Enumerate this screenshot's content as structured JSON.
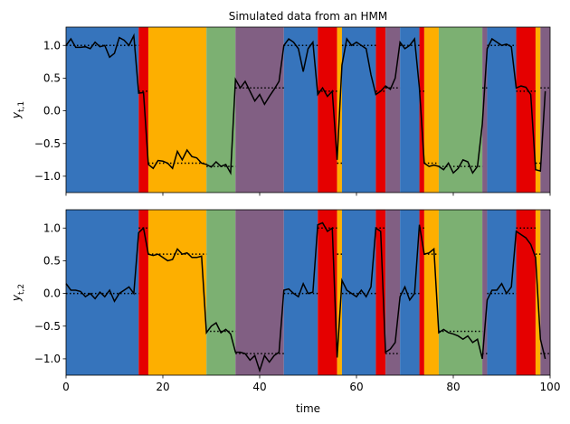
{
  "chart_data": [
    {
      "type": "line",
      "title": "Simulated data from an HMM",
      "ylabel": "y",
      "ylabel_sub": "t,1",
      "xlim": [
        0,
        100
      ],
      "ylim": [
        -1.25,
        1.28
      ],
      "xticks": [
        0,
        20,
        40,
        60,
        80,
        100
      ],
      "xtick_labels": false,
      "yticks": [
        {
          "value": -1.0,
          "label": "−1.0"
        },
        {
          "value": -0.5,
          "label": "−0.5"
        },
        {
          "value": 0.0,
          "label": "0.0"
        },
        0.5,
        {
          "value": 1.0,
          "label": "1.0"
        }
      ],
      "segments": [
        {
          "start": 0,
          "end": 15,
          "color": "#3674bc",
          "mean": 1.0
        },
        {
          "start": 15,
          "end": 17,
          "color": "#e50000",
          "mean": 0.3
        },
        {
          "start": 17,
          "end": 29,
          "color": "#fdaf00",
          "mean": -0.8
        },
        {
          "start": 29,
          "end": 35,
          "color": "#7cb072",
          "mean": -0.85
        },
        {
          "start": 35,
          "end": 45,
          "color": "#815f83",
          "mean": 0.35
        },
        {
          "start": 45,
          "end": 52,
          "color": "#3674bc",
          "mean": 1.0
        },
        {
          "start": 52,
          "end": 56,
          "color": "#e50000",
          "mean": 0.3
        },
        {
          "start": 56,
          "end": 57,
          "color": "#fdaf00",
          "mean": -0.8
        },
        {
          "start": 57,
          "end": 64,
          "color": "#3674bc",
          "mean": 1.0
        },
        {
          "start": 64,
          "end": 66,
          "color": "#e50000",
          "mean": 0.3
        },
        {
          "start": 66,
          "end": 69,
          "color": "#815f83",
          "mean": 0.35
        },
        {
          "start": 69,
          "end": 73,
          "color": "#3674bc",
          "mean": 1.0
        },
        {
          "start": 73,
          "end": 74,
          "color": "#e50000",
          "mean": 0.3
        },
        {
          "start": 74,
          "end": 77,
          "color": "#fdaf00",
          "mean": -0.8
        },
        {
          "start": 77,
          "end": 86,
          "color": "#7cb072",
          "mean": -0.85
        },
        {
          "start": 86,
          "end": 87,
          "color": "#815f83",
          "mean": 0.35
        },
        {
          "start": 87,
          "end": 93,
          "color": "#3674bc",
          "mean": 1.0
        },
        {
          "start": 93,
          "end": 97,
          "color": "#e50000",
          "mean": 0.3
        },
        {
          "start": 97,
          "end": 98,
          "color": "#fdaf00",
          "mean": -0.8
        },
        {
          "start": 98,
          "end": 100,
          "color": "#815f83",
          "mean": 0.35
        }
      ],
      "x": [
        0,
        1,
        2,
        3,
        4,
        5,
        6,
        7,
        8,
        9,
        10,
        11,
        12,
        13,
        14,
        15,
        16,
        17,
        18,
        19,
        20,
        21,
        22,
        23,
        24,
        25,
        26,
        27,
        28,
        29,
        30,
        31,
        32,
        33,
        34,
        35,
        36,
        37,
        38,
        39,
        40,
        41,
        42,
        43,
        44,
        45,
        46,
        47,
        48,
        49,
        50,
        51,
        52,
        53,
        54,
        55,
        56,
        57,
        58,
        59,
        60,
        61,
        62,
        63,
        64,
        65,
        66,
        67,
        68,
        69,
        70,
        71,
        72,
        73,
        74,
        75,
        76,
        77,
        78,
        79,
        80,
        81,
        82,
        83,
        84,
        85,
        86,
        87,
        88,
        89,
        90,
        91,
        92,
        93,
        94,
        95,
        96,
        97,
        98,
        99
      ],
      "series": [
        {
          "color": "#000000",
          "values": [
            1.0,
            1.1,
            0.97,
            0.97,
            0.98,
            0.95,
            1.05,
            0.98,
            1.0,
            0.82,
            0.88,
            1.12,
            1.08,
            1.0,
            1.15,
            0.27,
            0.28,
            -0.82,
            -0.88,
            -0.76,
            -0.77,
            -0.8,
            -0.88,
            -0.62,
            -0.75,
            -0.6,
            -0.7,
            -0.72,
            -0.8,
            -0.82,
            -0.86,
            -0.78,
            -0.85,
            -0.82,
            -0.95,
            0.48,
            0.35,
            0.45,
            0.3,
            0.15,
            0.25,
            0.1,
            0.22,
            0.33,
            0.45,
            1.0,
            1.1,
            1.05,
            0.95,
            0.6,
            0.95,
            1.05,
            0.25,
            0.35,
            0.22,
            0.3,
            -0.75,
            0.7,
            1.1,
            1.0,
            1.05,
            1.0,
            0.95,
            0.55,
            0.25,
            0.3,
            0.38,
            0.33,
            0.5,
            1.05,
            0.95,
            1.0,
            1.1,
            0.35,
            -0.8,
            -0.85,
            -0.83,
            -0.85,
            -0.9,
            -0.8,
            -0.95,
            -0.88,
            -0.75,
            -0.78,
            -0.95,
            -0.85,
            -0.2,
            0.95,
            1.1,
            1.05,
            1.0,
            1.02,
            0.98,
            0.35,
            0.38,
            0.36,
            0.25,
            -0.9,
            -0.92,
            0.3
          ]
        }
      ]
    },
    {
      "type": "line",
      "xlabel": "time",
      "ylabel": "y",
      "ylabel_sub": "t,2",
      "xlim": [
        0,
        100
      ],
      "ylim": [
        -1.25,
        1.28
      ],
      "xticks": [
        0,
        20,
        40,
        60,
        80,
        100
      ],
      "xtick_labels": true,
      "yticks": [
        {
          "value": -1.0,
          "label": "−1.0"
        },
        {
          "value": -0.5,
          "label": "−0.5"
        },
        {
          "value": 0.0,
          "label": "0.0"
        },
        0.5,
        {
          "value": 1.0,
          "label": "1.0"
        }
      ],
      "segments": [
        {
          "start": 0,
          "end": 15,
          "color": "#3674bc",
          "mean": 0.0
        },
        {
          "start": 15,
          "end": 17,
          "color": "#e50000",
          "mean": 1.0
        },
        {
          "start": 17,
          "end": 29,
          "color": "#fdaf00",
          "mean": 0.6
        },
        {
          "start": 29,
          "end": 35,
          "color": "#7cb072",
          "mean": -0.58
        },
        {
          "start": 35,
          "end": 45,
          "color": "#815f83",
          "mean": -0.92
        },
        {
          "start": 45,
          "end": 52,
          "color": "#3674bc",
          "mean": 0.0
        },
        {
          "start": 52,
          "end": 56,
          "color": "#e50000",
          "mean": 1.0
        },
        {
          "start": 56,
          "end": 57,
          "color": "#fdaf00",
          "mean": 0.6
        },
        {
          "start": 57,
          "end": 64,
          "color": "#3674bc",
          "mean": 0.0
        },
        {
          "start": 64,
          "end": 66,
          "color": "#e50000",
          "mean": 1.0
        },
        {
          "start": 66,
          "end": 69,
          "color": "#815f83",
          "mean": -0.92
        },
        {
          "start": 69,
          "end": 73,
          "color": "#3674bc",
          "mean": 0.0
        },
        {
          "start": 73,
          "end": 74,
          "color": "#e50000",
          "mean": 1.0
        },
        {
          "start": 74,
          "end": 77,
          "color": "#fdaf00",
          "mean": 0.6
        },
        {
          "start": 77,
          "end": 86,
          "color": "#7cb072",
          "mean": -0.58
        },
        {
          "start": 86,
          "end": 87,
          "color": "#815f83",
          "mean": -0.92
        },
        {
          "start": 87,
          "end": 93,
          "color": "#3674bc",
          "mean": 0.0
        },
        {
          "start": 93,
          "end": 97,
          "color": "#e50000",
          "mean": 1.0
        },
        {
          "start": 97,
          "end": 98,
          "color": "#fdaf00",
          "mean": 0.6
        },
        {
          "start": 98,
          "end": 100,
          "color": "#815f83",
          "mean": -0.92
        }
      ],
      "x": [
        0,
        1,
        2,
        3,
        4,
        5,
        6,
        7,
        8,
        9,
        10,
        11,
        12,
        13,
        14,
        15,
        16,
        17,
        18,
        19,
        20,
        21,
        22,
        23,
        24,
        25,
        26,
        27,
        28,
        29,
        30,
        31,
        32,
        33,
        34,
        35,
        36,
        37,
        38,
        39,
        40,
        41,
        42,
        43,
        44,
        45,
        46,
        47,
        48,
        49,
        50,
        51,
        52,
        53,
        54,
        55,
        56,
        57,
        58,
        59,
        60,
        61,
        62,
        63,
        64,
        65,
        66,
        67,
        68,
        69,
        70,
        71,
        72,
        73,
        74,
        75,
        76,
        77,
        78,
        79,
        80,
        81,
        82,
        83,
        84,
        85,
        86,
        87,
        88,
        89,
        90,
        91,
        92,
        93,
        94,
        95,
        96,
        97,
        98,
        99
      ],
      "series": [
        {
          "color": "#000000",
          "values": [
            0.15,
            0.05,
            0.05,
            0.03,
            -0.05,
            0.0,
            -0.08,
            0.02,
            -0.05,
            0.05,
            -0.12,
            0.0,
            0.05,
            0.1,
            0.0,
            0.93,
            1.0,
            0.6,
            0.58,
            0.6,
            0.55,
            0.5,
            0.52,
            0.68,
            0.6,
            0.62,
            0.55,
            0.55,
            0.57,
            -0.6,
            -0.5,
            -0.45,
            -0.6,
            -0.55,
            -0.62,
            -0.9,
            -0.9,
            -0.92,
            -1.02,
            -0.95,
            -1.18,
            -0.95,
            -1.05,
            -0.95,
            -0.9,
            0.05,
            0.07,
            0.0,
            -0.05,
            0.15,
            0.0,
            0.02,
            1.05,
            1.08,
            0.95,
            1.0,
            -0.98,
            0.2,
            0.05,
            0.0,
            -0.05,
            0.05,
            -0.05,
            0.1,
            1.0,
            0.95,
            -0.9,
            -0.85,
            -0.75,
            -0.05,
            0.1,
            -0.1,
            0.0,
            1.05,
            0.6,
            0.62,
            0.68,
            -0.6,
            -0.55,
            -0.6,
            -0.62,
            -0.65,
            -0.7,
            -0.65,
            -0.75,
            -0.7,
            -1.0,
            -0.1,
            0.05,
            0.05,
            0.15,
            0.0,
            0.1,
            0.95,
            0.9,
            0.85,
            0.75,
            0.55,
            -0.7,
            -1.0
          ]
        }
      ]
    }
  ]
}
